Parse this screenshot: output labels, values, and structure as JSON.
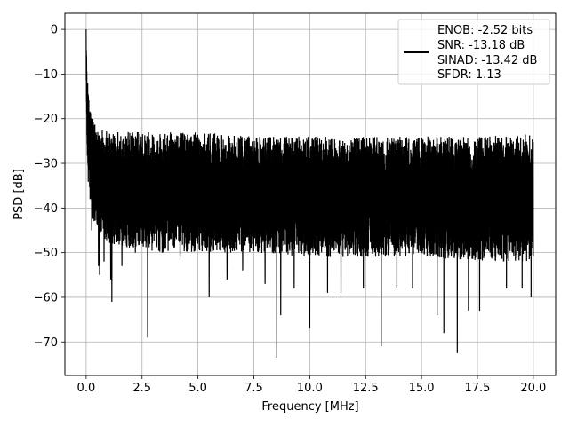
{
  "chart_data": {
    "type": "line",
    "title": "",
    "xlabel": "Frequency [MHz]",
    "ylabel": "PSD [dB]",
    "xlim": [
      -0.95,
      21.0
    ],
    "ylim": [
      -77.5,
      3.6
    ],
    "xticks": [
      0.0,
      2.5,
      5.0,
      7.5,
      10.0,
      12.5,
      15.0,
      17.5,
      20.0
    ],
    "xtick_labels": [
      "0.0",
      "2.5",
      "5.0",
      "7.5",
      "10.0",
      "12.5",
      "15.0",
      "17.5",
      "20.0"
    ],
    "yticks": [
      0,
      -10,
      -20,
      -30,
      -40,
      -50,
      -60,
      -70
    ],
    "ytick_labels": [
      "0",
      "−10",
      "−20",
      "−30",
      "−40",
      "−50",
      "−60",
      "−70"
    ],
    "grid": true,
    "legend_position": "top-right",
    "legend_lines": [
      "ENOB: -2.52 bits",
      "SNR: -13.18 dB",
      "SINAD: -13.42 dB",
      "SFDR: 1.13"
    ],
    "line_color": "#000000",
    "x_range": [
      0.0,
      20.0
    ],
    "series": [
      {
        "description": "noisy PSD trace",
        "peak": {
          "x": 0.0,
          "y": 0.0
        },
        "envelope": {
          "x": [
            0.0,
            0.05,
            0.1,
            0.2,
            0.3,
            0.5,
            1.0,
            2.0,
            3.0,
            5.0,
            7.5,
            10.0,
            12.5,
            15.0,
            17.5,
            20.0
          ],
          "upper": [
            0.0,
            -9,
            -14,
            -18,
            -20,
            -22,
            -23,
            -23,
            -23,
            -23,
            -24,
            -24,
            -24,
            -24,
            -24,
            -23
          ],
          "lower": [
            -15,
            -30,
            -35,
            -40,
            -43,
            -46,
            -48,
            -49,
            -50,
            -50,
            -50,
            -51,
            -51,
            -51,
            -52,
            -52
          ]
        },
        "dips": [
          {
            "x": 0.25,
            "y": -45
          },
          {
            "x": 0.55,
            "y": -53
          },
          {
            "x": 0.6,
            "y": -55
          },
          {
            "x": 0.8,
            "y": -52
          },
          {
            "x": 1.15,
            "y": -61
          },
          {
            "x": 1.1,
            "y": -56
          },
          {
            "x": 1.6,
            "y": -53
          },
          {
            "x": 2.2,
            "y": -50
          },
          {
            "x": 2.75,
            "y": -69
          },
          {
            "x": 3.4,
            "y": -50
          },
          {
            "x": 4.2,
            "y": -51
          },
          {
            "x": 5.5,
            "y": -60
          },
          {
            "x": 6.3,
            "y": -56
          },
          {
            "x": 7.0,
            "y": -54
          },
          {
            "x": 8.0,
            "y": -57
          },
          {
            "x": 8.5,
            "y": -73.5
          },
          {
            "x": 8.7,
            "y": -64
          },
          {
            "x": 9.3,
            "y": -58
          },
          {
            "x": 10.0,
            "y": -67
          },
          {
            "x": 10.8,
            "y": -59
          },
          {
            "x": 11.4,
            "y": -59
          },
          {
            "x": 12.4,
            "y": -58
          },
          {
            "x": 13.2,
            "y": -71
          },
          {
            "x": 13.9,
            "y": -58
          },
          {
            "x": 14.6,
            "y": -58
          },
          {
            "x": 15.7,
            "y": -64
          },
          {
            "x": 16.0,
            "y": -68
          },
          {
            "x": 16.6,
            "y": -72.5
          },
          {
            "x": 17.1,
            "y": -63
          },
          {
            "x": 17.6,
            "y": -63
          },
          {
            "x": 18.8,
            "y": -58
          },
          {
            "x": 19.5,
            "y": -58
          },
          {
            "x": 19.9,
            "y": -60
          }
        ]
      }
    ]
  }
}
